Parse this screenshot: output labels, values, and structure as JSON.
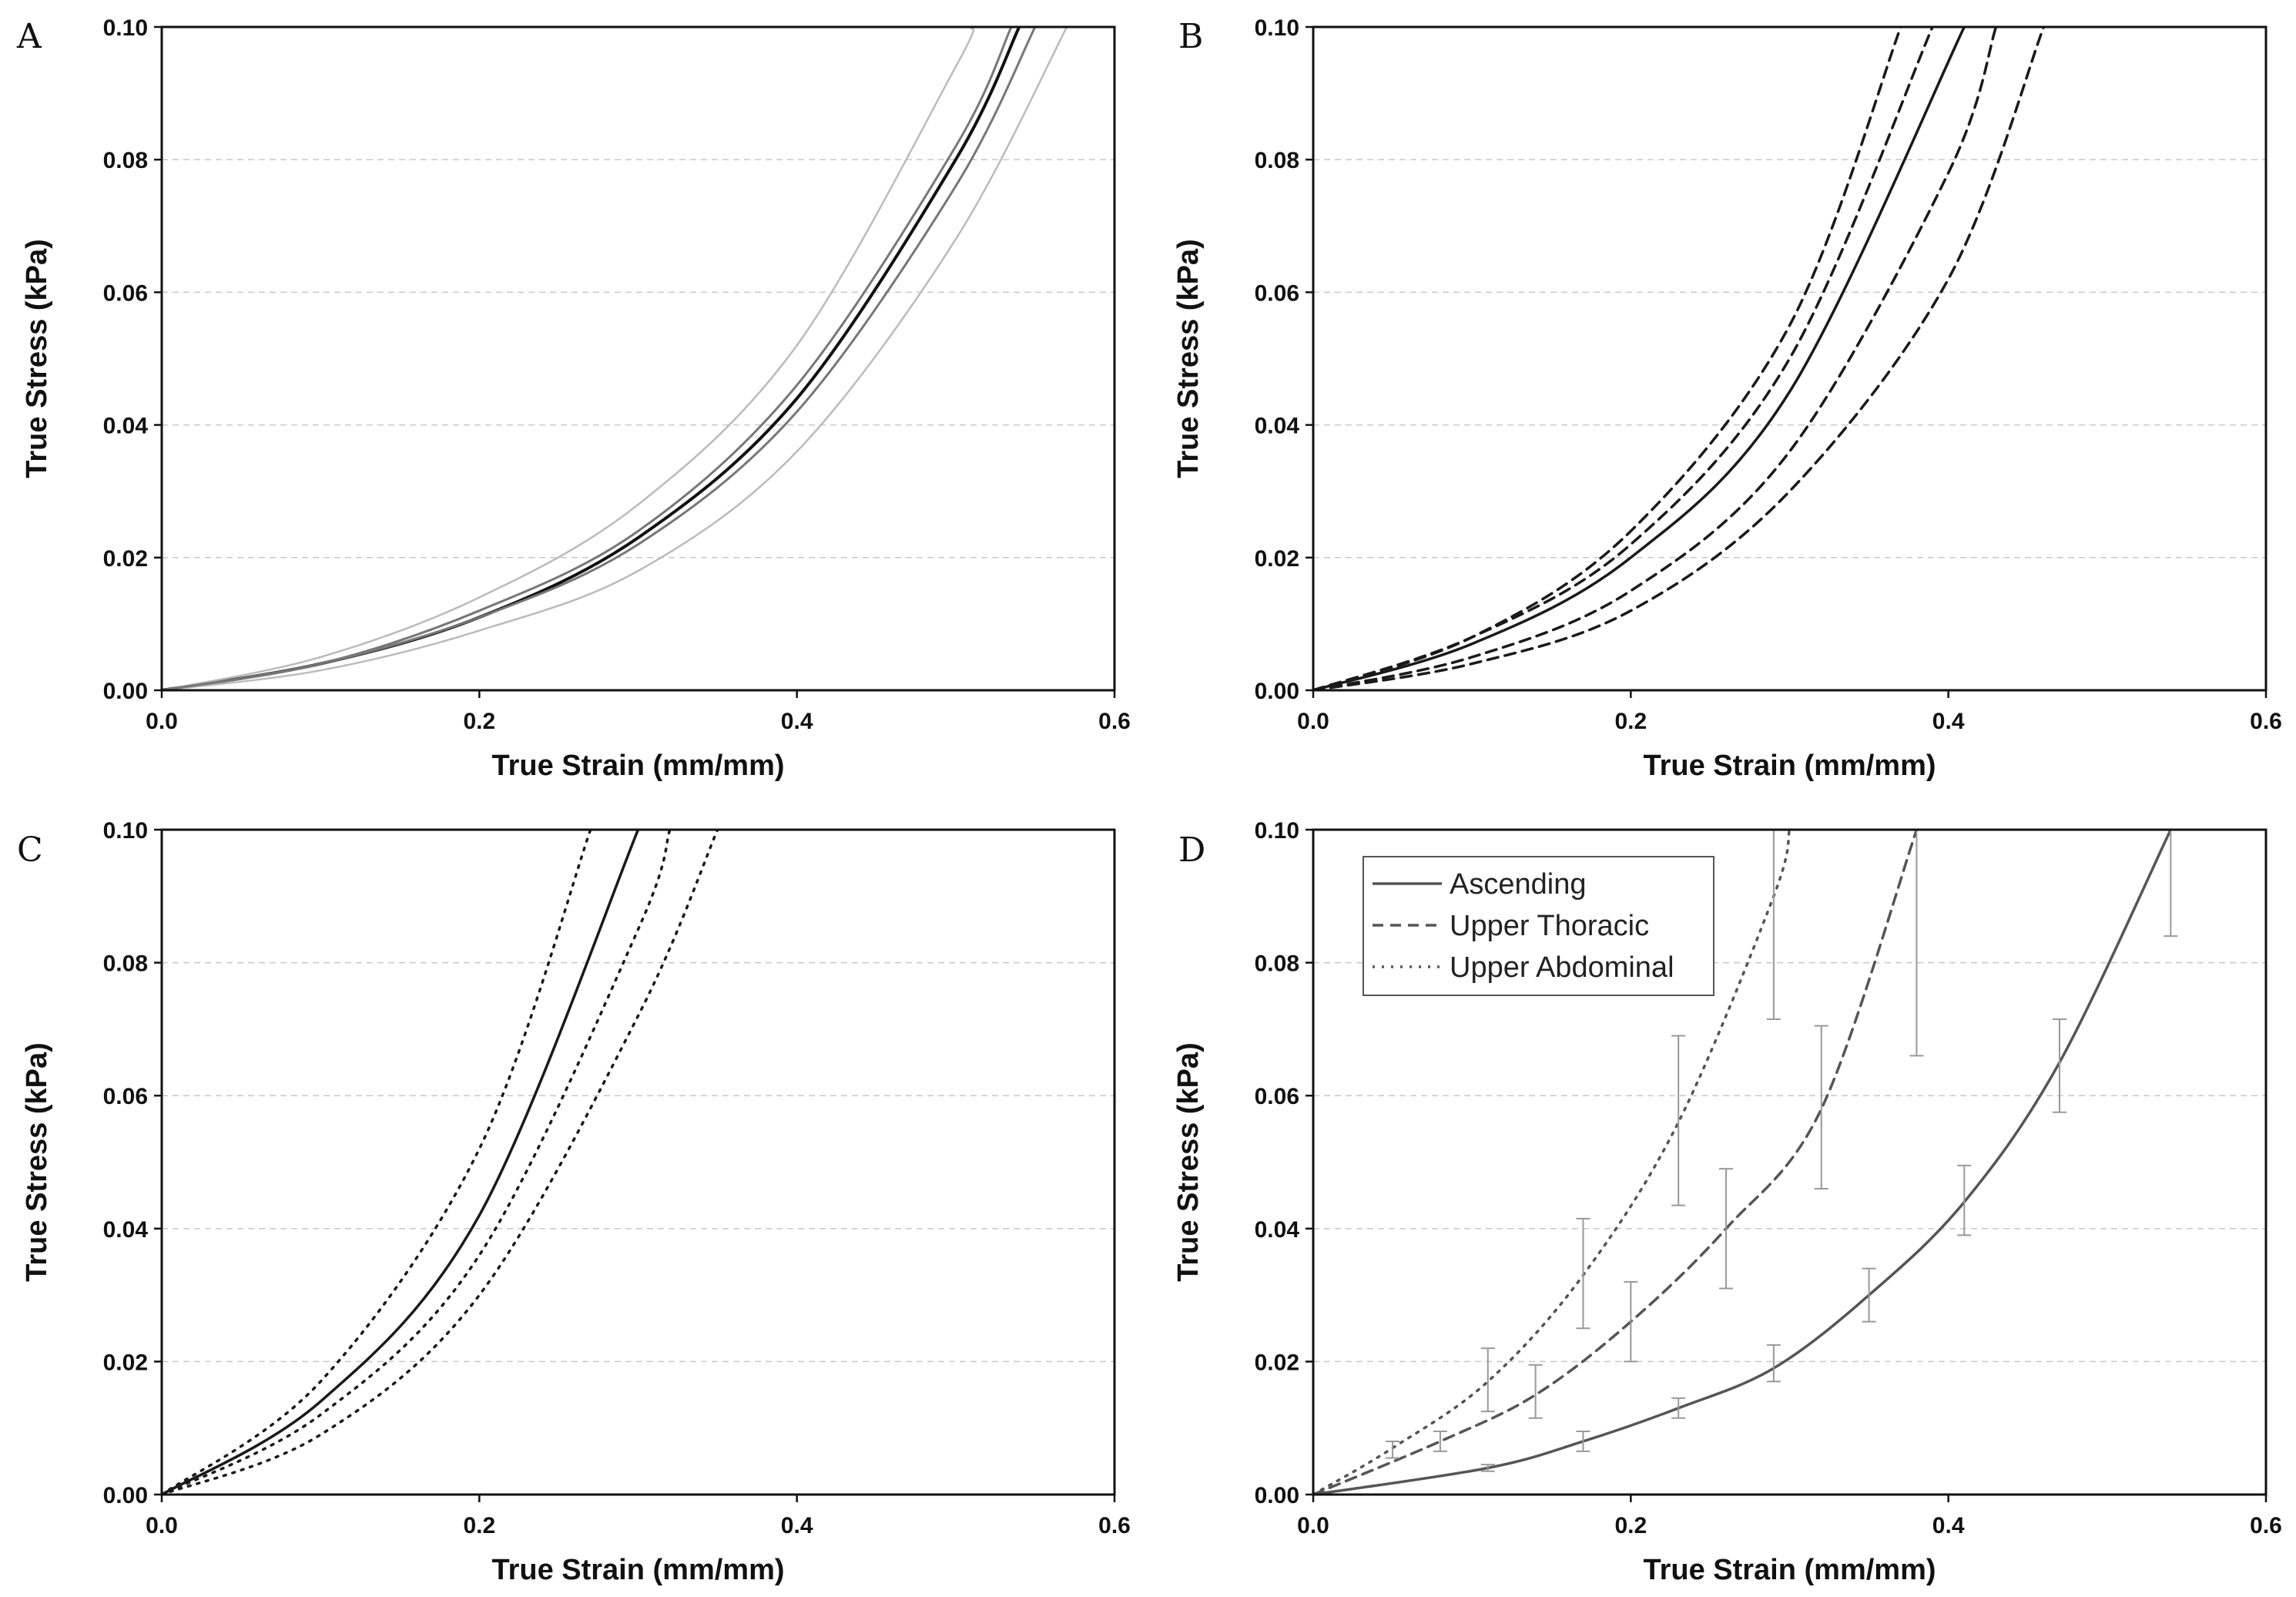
{
  "chart_data": [
    {
      "panel": "A",
      "type": "line",
      "xlabel": "True Strain (mm/mm)",
      "ylabel": "True Stress (kPa)",
      "xlim": [
        0,
        0.6
      ],
      "ylim": [
        0,
        0.1
      ],
      "xticks": [
        "0.0",
        "0.2",
        "0.4",
        "0.6"
      ],
      "yticks": [
        "0.00",
        "0.02",
        "0.04",
        "0.06",
        "0.08",
        "0.10"
      ],
      "grid": "horizontal dashed",
      "series": [
        {
          "style": "solid-black",
          "x": [
            0,
            0.1,
            0.2,
            0.3,
            0.4,
            0.5,
            0.54
          ],
          "y": [
            0,
            0.004,
            0.011,
            0.023,
            0.044,
            0.08,
            0.1
          ]
        },
        {
          "style": "solid-lightgray",
          "x": [
            0,
            0.1,
            0.2,
            0.3,
            0.4,
            0.5,
            0.51
          ],
          "y": [
            0,
            0.005,
            0.014,
            0.028,
            0.052,
            0.094,
            0.1
          ]
        },
        {
          "style": "solid-lightgray",
          "x": [
            0,
            0.1,
            0.2,
            0.3,
            0.4,
            0.5,
            0.57
          ],
          "y": [
            0,
            0.003,
            0.009,
            0.018,
            0.036,
            0.068,
            0.1
          ]
        },
        {
          "style": "solid-gray",
          "x": [
            0,
            0.1,
            0.2,
            0.3,
            0.4,
            0.5,
            0.535
          ],
          "y": [
            0,
            0.004,
            0.012,
            0.024,
            0.046,
            0.082,
            0.1
          ]
        },
        {
          "style": "solid-gray",
          "x": [
            0,
            0.1,
            0.2,
            0.3,
            0.4,
            0.5,
            0.55
          ],
          "y": [
            0,
            0.004,
            0.011,
            0.022,
            0.042,
            0.076,
            0.1
          ]
        }
      ]
    },
    {
      "panel": "B",
      "type": "line",
      "xlabel": "True Strain (mm/mm)",
      "ylabel": "True Stress (kPa)",
      "xlim": [
        0,
        0.6
      ],
      "ylim": [
        0,
        0.1
      ],
      "xticks": [
        "0.0",
        "0.2",
        "0.4",
        "0.6"
      ],
      "yticks": [
        "0.00",
        "0.02",
        "0.04",
        "0.06",
        "0.08",
        "0.10"
      ],
      "grid": "horizontal dashed",
      "series": [
        {
          "style": "solid",
          "x": [
            0,
            0.1,
            0.2,
            0.3,
            0.41
          ],
          "y": [
            0,
            0.007,
            0.02,
            0.045,
            0.1
          ]
        },
        {
          "style": "dashed",
          "x": [
            0,
            0.1,
            0.2,
            0.3,
            0.37
          ],
          "y": [
            0,
            0.008,
            0.024,
            0.055,
            0.1
          ]
        },
        {
          "style": "dashed",
          "x": [
            0,
            0.1,
            0.2,
            0.3,
            0.39
          ],
          "y": [
            0,
            0.008,
            0.022,
            0.05,
            0.1
          ]
        },
        {
          "style": "dashed",
          "x": [
            0,
            0.1,
            0.2,
            0.3,
            0.4,
            0.43
          ],
          "y": [
            0,
            0.005,
            0.015,
            0.036,
            0.078,
            0.1
          ]
        },
        {
          "style": "dashed",
          "x": [
            0,
            0.1,
            0.2,
            0.3,
            0.4,
            0.46
          ],
          "y": [
            0,
            0.004,
            0.012,
            0.03,
            0.062,
            0.1
          ]
        }
      ]
    },
    {
      "panel": "C",
      "type": "line",
      "xlabel": "True Strain (mm/mm)",
      "ylabel": "True Stress (kPa)",
      "xlim": [
        0,
        0.6
      ],
      "ylim": [
        0,
        0.1
      ],
      "xticks": [
        "0.0",
        "0.2",
        "0.4",
        "0.6"
      ],
      "yticks": [
        "0.00",
        "0.02",
        "0.04",
        "0.06",
        "0.08",
        "0.10"
      ],
      "grid": "horizontal dashed",
      "series": [
        {
          "style": "solid",
          "x": [
            0,
            0.1,
            0.2,
            0.3
          ],
          "y": [
            0,
            0.014,
            0.042,
            0.1
          ]
        },
        {
          "style": "dotted",
          "x": [
            0,
            0.1,
            0.2,
            0.27
          ],
          "y": [
            0,
            0.017,
            0.052,
            0.1
          ]
        },
        {
          "style": "dotted",
          "x": [
            0,
            0.1,
            0.2,
            0.3,
            0.32
          ],
          "y": [
            0,
            0.012,
            0.036,
            0.085,
            0.1
          ]
        },
        {
          "style": "dotted",
          "x": [
            0,
            0.1,
            0.2,
            0.3,
            0.35
          ],
          "y": [
            0,
            0.009,
            0.03,
            0.072,
            0.1
          ]
        }
      ]
    },
    {
      "panel": "D",
      "type": "line",
      "xlabel": "True Strain (mm/mm)",
      "ylabel": "True Stress (kPa)",
      "xlim": [
        0,
        0.6
      ],
      "ylim": [
        0,
        0.1
      ],
      "xticks": [
        "0.0",
        "0.2",
        "0.4",
        "0.6"
      ],
      "yticks": [
        "0.00",
        "0.02",
        "0.04",
        "0.06",
        "0.08",
        "0.10"
      ],
      "grid": "horizontal dashed",
      "legend": "top-left",
      "series": [
        {
          "name": "Ascending",
          "style": "solid",
          "x": [
            0,
            0.11,
            0.17,
            0.23,
            0.29,
            0.35,
            0.41,
            0.47,
            0.54
          ],
          "y": [
            0,
            0.004,
            0.008,
            0.013,
            0.019,
            0.03,
            0.044,
            0.065,
            0.1
          ],
          "err_low": [
            0,
            0.0035,
            0.0065,
            0.0115,
            0.017,
            0.026,
            0.039,
            0.0575,
            0.084
          ],
          "err_high": [
            0,
            0.0045,
            0.0095,
            0.0145,
            0.0225,
            0.034,
            0.0495,
            0.0715,
            0.1
          ]
        },
        {
          "name": "Upper Thoracic",
          "style": "dashed",
          "x": [
            0,
            0.08,
            0.14,
            0.2,
            0.26,
            0.32,
            0.38
          ],
          "y": [
            0,
            0.008,
            0.015,
            0.026,
            0.04,
            0.058,
            0.1
          ],
          "err_low": [
            0,
            0.0065,
            0.0115,
            0.02,
            0.031,
            0.046,
            0.066
          ],
          "err_high": [
            0,
            0.0095,
            0.0195,
            0.032,
            0.049,
            0.0705,
            0.1
          ]
        },
        {
          "name": "Upper Abdominal",
          "style": "dotted",
          "x": [
            0,
            0.05,
            0.11,
            0.17,
            0.23,
            0.29,
            0.3
          ],
          "y": [
            0,
            0.007,
            0.017,
            0.033,
            0.056,
            0.09,
            0.1
          ],
          "err_low": [
            0,
            0.0055,
            0.0125,
            0.025,
            0.0435,
            0.0715,
            0.1
          ],
          "err_high": [
            0,
            0.008,
            0.022,
            0.0415,
            0.069,
            0.1,
            0.1
          ]
        }
      ]
    }
  ]
}
